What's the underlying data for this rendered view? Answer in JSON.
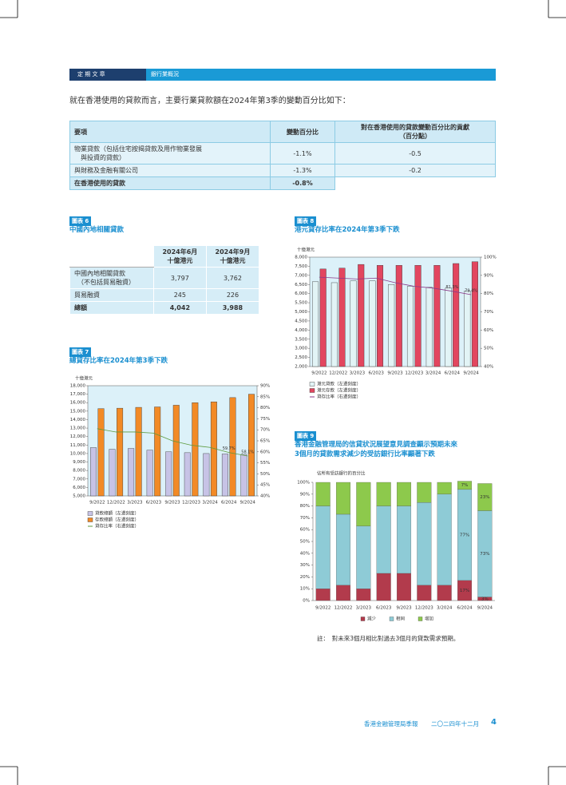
{
  "header": {
    "section": "定 期 文 章",
    "topic": "銀行業概況"
  },
  "intro": "就在香港使用的貸款而言，主要行業貸款額在2024年第3季的變動百分比如下：",
  "table": {
    "columns": [
      "要項",
      "變動百分比",
      "對在香港使用的貸款變動百分比的貢獻\n（百分點）"
    ],
    "rows": [
      [
        "物業貸款（包括住宅按揭貸款及用作物業發展\n　與投資的貸款）",
        "-1.1%",
        "-0.5"
      ],
      [
        "與財務及金融有關公司",
        "-1.3%",
        "-0.2"
      ],
      [
        "在香港使用的貸款",
        "-0.8%"
      ]
    ]
  },
  "chart6": {
    "label": "圖表 6",
    "title": "中國內地相關貸款",
    "columns": [
      "2024年6月\n十億港元",
      "2024年9月\n十億港元"
    ],
    "rows": [
      {
        "label": "中國內地相關貸款\n　（不包括貿易融資）",
        "values": [
          "3,797",
          "3,762"
        ]
      },
      {
        "label": "貿易融資",
        "values": [
          "245",
          "226"
        ]
      },
      {
        "label": "總額",
        "values": [
          "4,042",
          "3,988"
        ]
      }
    ]
  },
  "chart7": {
    "label": "圖表 7",
    "type": "bar",
    "title": "總貸存比率在2024年第3季下跌",
    "y_label": "十億港元",
    "categories": [
      "9/2022",
      "12/2022",
      "3/2023",
      "6/2023",
      "9/2023",
      "12/2023",
      "3/2024",
      "6/2024",
      "9/2024"
    ],
    "series": [
      {
        "name": "貸款總額（左邊刻度）",
        "color": "#c7c3e6",
        "values": [
          10700,
          10500,
          10600,
          10400,
          10200,
          10100,
          10000,
          9950,
          9900
        ]
      },
      {
        "name": "存款總額（左邊刻度）",
        "color": "#f28a26",
        "values": [
          15300,
          15350,
          15450,
          15500,
          15700,
          16000,
          16100,
          16600,
          17000
        ]
      },
      {
        "name": "貸存比率（右邊刻度）",
        "color": "#5b9a3c",
        "type": "line",
        "axis": "y2",
        "values": [
          70.5,
          69,
          69,
          68.5,
          65,
          63,
          62,
          59.7,
          58.1
        ],
        "value_labels": [
          null,
          null,
          null,
          null,
          null,
          null,
          null,
          "59.7%",
          "58.1%"
        ]
      }
    ],
    "ylim": [
      5000,
      18000
    ],
    "yticks": [
      {
        "value": 5000,
        "label": "5,000"
      },
      {
        "value": 6000,
        "label": "6,000"
      },
      {
        "value": 7000,
        "label": "7,000"
      },
      {
        "value": 8000,
        "label": "8,000"
      },
      {
        "value": 9000,
        "label": "9,000"
      },
      {
        "value": 10000,
        "label": "10,000"
      },
      {
        "value": 11000,
        "label": "11,000"
      },
      {
        "value": 12000,
        "label": "12,000"
      },
      {
        "value": 13000,
        "label": "13,000"
      },
      {
        "value": 14000,
        "label": "14,000"
      },
      {
        "value": 15000,
        "label": "15,000"
      },
      {
        "value": 16000,
        "label": "16,000"
      },
      {
        "value": 17000,
        "label": "17,000"
      },
      {
        "value": 18000,
        "label": "18,000"
      }
    ],
    "y2lim": [
      40,
      90
    ],
    "y2ticks": [
      {
        "value": 40,
        "label": "40%"
      },
      {
        "value": 45,
        "label": "45%"
      },
      {
        "value": 50,
        "label": "50%"
      },
      {
        "value": 55,
        "label": "55%"
      },
      {
        "value": 60,
        "label": "60%"
      },
      {
        "value": 65,
        "label": "65%"
      },
      {
        "value": 70,
        "label": "70%"
      },
      {
        "value": 75,
        "label": "75%"
      },
      {
        "value": 80,
        "label": "80%"
      },
      {
        "value": 85,
        "label": "85%"
      },
      {
        "value": 90,
        "label": "90%"
      }
    ]
  },
  "chart8": {
    "label": "圖表 8",
    "type": "bar",
    "title": "港元貸存比率在2024年第3季下跌",
    "y_label": "十億港元",
    "categories": [
      "9/2022",
      "12/2022",
      "3/2023",
      "6/2023",
      "9/2023",
      "12/2023",
      "3/2024",
      "6/2024",
      "9/2024"
    ],
    "series": [
      {
        "name": "港元貸款（左邊刻度）",
        "color": "#e2f4f6",
        "values": [
          6650,
          6600,
          6700,
          6700,
          6500,
          6400,
          6350,
          6300,
          6150
        ]
      },
      {
        "name": "港元存款（左邊刻度）",
        "color": "#e2465f",
        "values": [
          7350,
          7400,
          7600,
          7550,
          7550,
          7550,
          7550,
          7650,
          7750
        ]
      },
      {
        "name": "貸存比率（右邊刻度）",
        "color": "#8a3a8a",
        "type": "line",
        "axis": "y2",
        "values": [
          89,
          88.5,
          88,
          88.5,
          86,
          84,
          83,
          81.3,
          79.4
        ],
        "value_labels": [
          null,
          null,
          null,
          null,
          null,
          null,
          null,
          "81.3%",
          "79.4%"
        ]
      }
    ],
    "ylim": [
      2000,
      8000
    ],
    "yticks": [
      {
        "value": 2000,
        "label": "2,000"
      },
      {
        "value": 2500,
        "label": "2,500"
      },
      {
        "value": 3000,
        "label": "3,000"
      },
      {
        "value": 3500,
        "label": "3,500"
      },
      {
        "value": 4000,
        "label": "4,000"
      },
      {
        "value": 4500,
        "label": "4,500"
      },
      {
        "value": 5000,
        "label": "5,000"
      },
      {
        "value": 5500,
        "label": "5,500"
      },
      {
        "value": 6000,
        "label": "6,000"
      },
      {
        "value": 6500,
        "label": "6,500"
      },
      {
        "value": 7000,
        "label": "7,000"
      },
      {
        "value": 7500,
        "label": "7,500"
      },
      {
        "value": 8000,
        "label": "8,000"
      }
    ],
    "y2lim": [
      40,
      100
    ],
    "y2ticks": [
      {
        "value": 40,
        "label": "40%"
      },
      {
        "value": 50,
        "label": "50%"
      },
      {
        "value": 60,
        "label": "60%"
      },
      {
        "value": 70,
        "label": "70%"
      },
      {
        "value": 80,
        "label": "80%"
      },
      {
        "value": 90,
        "label": "90%"
      },
      {
        "value": 100,
        "label": "100%"
      }
    ]
  },
  "chart9": {
    "label": "圖表 9",
    "type": "stacked-bar",
    "title": "香港金融管理局的信貸狀況展望意見調查顯示預期未來\n3個月的貸款需求減少的受訪銀行比率顯著下跌",
    "y_label": "佔所有受訪銀行的百分比",
    "categories": [
      "9/2022",
      "12/2022",
      "3/2023",
      "6/2023",
      "9/2023",
      "12/2023",
      "3/2024",
      "6/2024",
      "9/2024"
    ],
    "series": [
      {
        "name": "減少",
        "color": "#b23b4c",
        "values": [
          10,
          13,
          10,
          23,
          23,
          13,
          13,
          17,
          3
        ],
        "value_labels": [
          null,
          null,
          null,
          null,
          null,
          null,
          null,
          "17%",
          "3%"
        ]
      },
      {
        "name": "相同",
        "color": "#8ecbd6",
        "values": [
          70,
          60,
          53,
          57,
          57,
          70,
          77,
          77,
          73
        ],
        "value_labels": [
          null,
          null,
          null,
          null,
          null,
          null,
          null,
          "77%",
          "73%"
        ]
      },
      {
        "name": "增加",
        "color": "#8dc94c",
        "values": [
          20,
          27,
          37,
          20,
          20,
          17,
          10,
          7,
          23
        ],
        "value_labels": [
          null,
          null,
          null,
          null,
          null,
          null,
          null,
          "7%",
          "23%"
        ]
      }
    ],
    "ylim": [
      0,
      100
    ],
    "yticks": [
      {
        "value": 0,
        "label": "0%"
      },
      {
        "value": 10,
        "label": "10%"
      },
      {
        "value": 20,
        "label": "20%"
      },
      {
        "value": 30,
        "label": "30%"
      },
      {
        "value": 40,
        "label": "40%"
      },
      {
        "value": 50,
        "label": "50%"
      },
      {
        "value": 60,
        "label": "60%"
      },
      {
        "value": 70,
        "label": "70%"
      },
      {
        "value": 80,
        "label": "80%"
      },
      {
        "value": 90,
        "label": "90%"
      },
      {
        "value": 100,
        "label": "100%"
      }
    ],
    "note": "註：　對未來3個月相比對過去3個月的貸款需求預期。"
  },
  "footer": {
    "publication": "香港金融管理局季報",
    "date": "二〇二四年十二月",
    "page": "4"
  }
}
